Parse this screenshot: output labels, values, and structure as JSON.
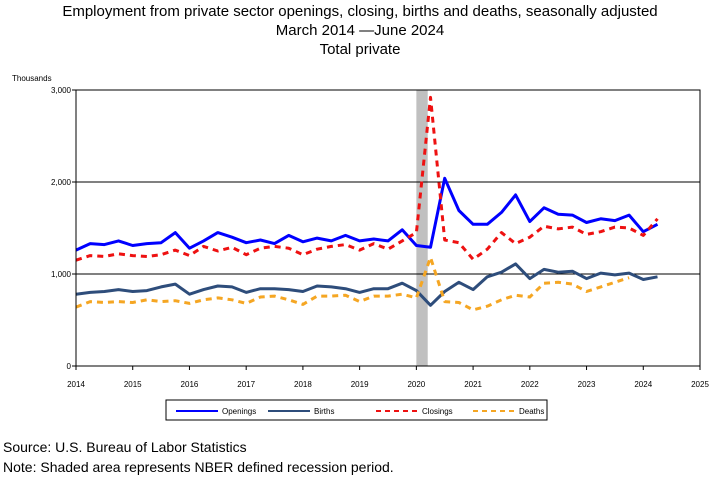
{
  "header": {
    "title_line1": "Employment from private sector openings, closing, births and deaths, seasonally adjusted",
    "title_line2": "March 2014 —June 2024",
    "title_line3": "Total private"
  },
  "footer": {
    "source": "Source: U.S. Bureau of Labor Statistics",
    "note": "Note: Shaded area represents NBER defined recession period."
  },
  "chart_data": {
    "type": "line",
    "ylabel": "Thousands",
    "ylim": [
      0,
      3000
    ],
    "yticks": [
      0,
      1000,
      2000,
      3000
    ],
    "ytick_labels": [
      "0",
      "1,000",
      "2,000",
      "3,000"
    ],
    "xlim": [
      2014,
      2025
    ],
    "xticks": [
      2014,
      2015,
      2016,
      2017,
      2018,
      2019,
      2020,
      2021,
      2022,
      2023,
      2024,
      2025
    ],
    "xtick_labels": [
      "2014",
      "2015",
      "2016",
      "2017",
      "2018",
      "2019",
      "2020",
      "2021",
      "2022",
      "2023",
      "2024",
      "2025"
    ],
    "recession": {
      "start": 2020.0,
      "end": 2020.2,
      "color": "#c0c0c0"
    },
    "gridlines": "horizontal",
    "legend_position": "bottom",
    "x": [
      2014.0,
      2014.25,
      2014.5,
      2014.75,
      2015.0,
      2015.25,
      2015.5,
      2015.75,
      2016.0,
      2016.25,
      2016.5,
      2016.75,
      2017.0,
      2017.25,
      2017.5,
      2017.75,
      2018.0,
      2018.25,
      2018.5,
      2018.75,
      2019.0,
      2019.25,
      2019.5,
      2019.75,
      2020.0,
      2020.25,
      2020.5,
      2020.75,
      2021.0,
      2021.25,
      2021.5,
      2021.75,
      2022.0,
      2022.25,
      2022.5,
      2022.75,
      2023.0,
      2023.25,
      2023.5,
      2023.75,
      2024.0,
      2024.25
    ],
    "series": [
      {
        "name": "Openings",
        "color": "#0000ff",
        "dash": "solid",
        "width": 3,
        "values": [
          1260,
          1330,
          1320,
          1360,
          1310,
          1330,
          1340,
          1450,
          1280,
          1360,
          1450,
          1400,
          1340,
          1370,
          1330,
          1420,
          1350,
          1390,
          1360,
          1420,
          1360,
          1380,
          1360,
          1480,
          1310,
          1290,
          2040,
          1690,
          1540,
          1540,
          1670,
          1860,
          1570,
          1720,
          1650,
          1640,
          1560,
          1600,
          1580,
          1640,
          1460,
          1540
        ]
      },
      {
        "name": "Births",
        "color": "#2e4d7b",
        "dash": "solid",
        "width": 3,
        "values": [
          780,
          800,
          810,
          830,
          810,
          820,
          860,
          890,
          780,
          830,
          870,
          860,
          800,
          840,
          840,
          830,
          810,
          870,
          860,
          840,
          800,
          840,
          840,
          900,
          820,
          660,
          810,
          910,
          830,
          970,
          1020,
          1110,
          950,
          1050,
          1020,
          1030,
          950,
          1010,
          990,
          1010,
          940,
          970
        ]
      },
      {
        "name": "Closings",
        "color": "#ee1111",
        "dash": "6,5",
        "width": 3,
        "values": [
          1150,
          1200,
          1190,
          1220,
          1200,
          1190,
          1210,
          1260,
          1200,
          1300,
          1250,
          1290,
          1210,
          1280,
          1300,
          1280,
          1210,
          1270,
          1300,
          1320,
          1260,
          1330,
          1270,
          1360,
          1450,
          2920,
          1370,
          1340,
          1160,
          1270,
          1450,
          1330,
          1400,
          1520,
          1490,
          1510,
          1430,
          1460,
          1510,
          1500,
          1420,
          1600
        ]
      },
      {
        "name": "Deaths",
        "color": "#f5a623",
        "dash": "6,5",
        "width": 3,
        "values": [
          640,
          700,
          690,
          700,
          690,
          720,
          700,
          710,
          680,
          720,
          740,
          720,
          680,
          750,
          760,
          720,
          670,
          760,
          760,
          770,
          700,
          760,
          760,
          780,
          740,
          1180,
          700,
          690,
          610,
          650,
          720,
          770,
          750,
          900,
          910,
          890,
          810,
          860,
          910,
          960,
          null,
          null
        ]
      }
    ]
  }
}
